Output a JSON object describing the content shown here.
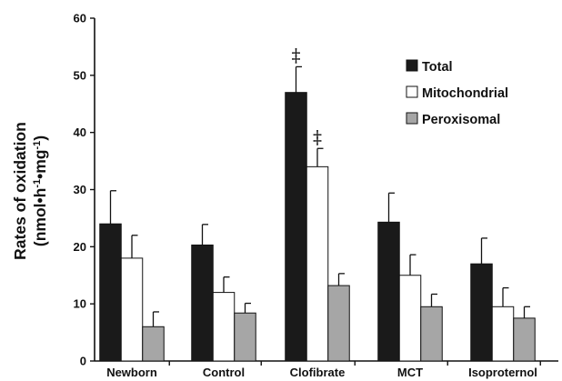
{
  "chart_data": {
    "type": "bar",
    "categories": [
      "Newborn",
      "Control",
      "Clofibrate",
      "MCT",
      "Isoproternol"
    ],
    "series": [
      {
        "name": "Total",
        "color": "#1a1a1a",
        "values": [
          24,
          20.3,
          47,
          24.3,
          17
        ],
        "errors": [
          5.8,
          3.6,
          4.5,
          5.1,
          4.5
        ],
        "annotations": [
          "",
          "",
          "‡",
          "",
          ""
        ]
      },
      {
        "name": "Mitochondrial",
        "color": "#ffffff",
        "values": [
          18,
          12,
          34,
          15,
          9.5
        ],
        "errors": [
          4,
          2.7,
          3.2,
          3.6,
          3.3
        ],
        "annotations": [
          "",
          "",
          "‡",
          "",
          ""
        ]
      },
      {
        "name": "Peroxisomal",
        "color": "#a6a6a6",
        "values": [
          6,
          8.4,
          13.2,
          9.5,
          7.5
        ],
        "errors": [
          2.6,
          1.7,
          2.1,
          2.2,
          2.0
        ],
        "annotations": [
          "",
          "",
          "",
          "",
          ""
        ]
      }
    ],
    "ylabel_line1": "Rates of oxidation",
    "ylabel_line2": "(nmol•h-1•mg-1)",
    "ylim": [
      0,
      60
    ],
    "yticks": [
      0,
      10,
      20,
      30,
      40,
      50,
      60
    ],
    "legend_position": "top-right",
    "grid": false
  }
}
